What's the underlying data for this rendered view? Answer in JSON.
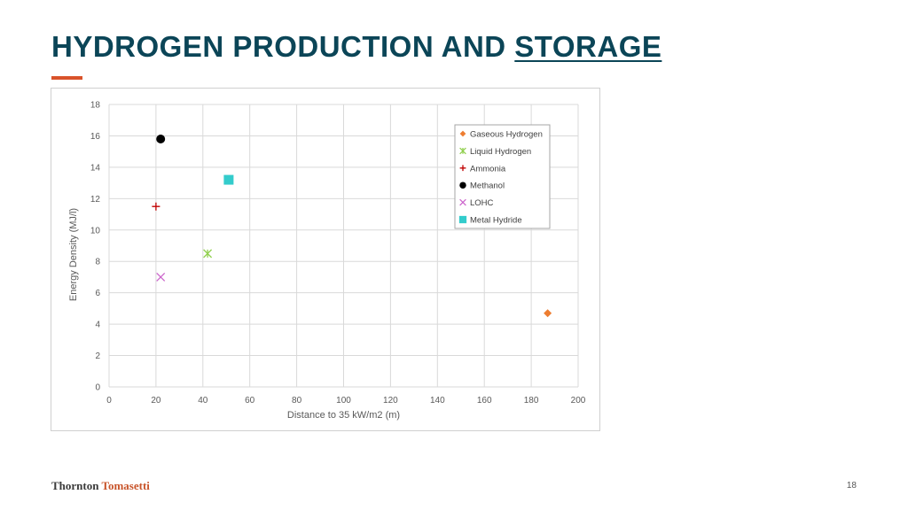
{
  "slide": {
    "title_part1": "HYDROGEN PRODUCTION AND ",
    "title_part2": "STORAGE",
    "page_number": "18",
    "logo_part1": "Thornton ",
    "logo_part2": "Tomasetti"
  },
  "colors": {
    "title": "#0b4557",
    "accent": "#d9532a",
    "grid": "#d9d9d9",
    "axis_text": "#595959"
  },
  "chart_data": {
    "type": "scatter",
    "title": "",
    "xlabel": "Distance to 35 kW/m2 (m)",
    "ylabel": "Energy Density (MJ/l)",
    "xlim": [
      0,
      200
    ],
    "ylim": [
      0,
      18
    ],
    "xticks": [
      0,
      20,
      40,
      60,
      80,
      100,
      120,
      140,
      160,
      180,
      200
    ],
    "yticks": [
      0,
      2,
      4,
      6,
      8,
      10,
      12,
      14,
      16,
      18
    ],
    "grid": true,
    "legend_position": "top-right",
    "series": [
      {
        "name": "Gaseous Hydrogen",
        "marker": "diamond",
        "color": "#ed7d31",
        "x": 187,
        "y": 4.7
      },
      {
        "name": "Liquid Hydrogen",
        "marker": "asterisk",
        "color": "#92d050",
        "x": 42,
        "y": 8.5
      },
      {
        "name": "Ammonia",
        "marker": "plus",
        "color": "#c00000",
        "x": 20,
        "y": 11.5
      },
      {
        "name": "Methanol",
        "marker": "circle",
        "color": "#000000",
        "x": 22,
        "y": 15.8
      },
      {
        "name": "LOHC",
        "marker": "x",
        "color": "#cc66cc",
        "x": 22,
        "y": 7.0
      },
      {
        "name": "Metal Hydride",
        "marker": "square",
        "color": "#33cccc",
        "x": 51,
        "y": 13.2
      }
    ]
  }
}
